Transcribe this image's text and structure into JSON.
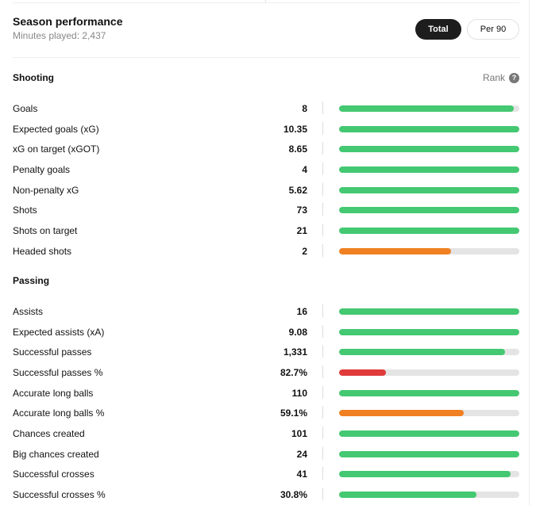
{
  "header": {
    "title": "Season performance",
    "subtitle": "Minutes played: 2,437",
    "buttons": {
      "total": "Total",
      "per90": "Per 90"
    },
    "rank_label": "Rank",
    "rank_help": "?"
  },
  "colors": {
    "good": "#44c872",
    "mid": "#f08022",
    "bad": "#e03a3a",
    "track": "#e4e4e4"
  },
  "sections": [
    {
      "title": "Shooting",
      "rows": [
        {
          "label": "Goals",
          "value": "8",
          "rank_pct": 97,
          "color": "good"
        },
        {
          "label": "Expected goals (xG)",
          "value": "10.35",
          "rank_pct": 100,
          "color": "good"
        },
        {
          "label": "xG on target (xGOT)",
          "value": "8.65",
          "rank_pct": 100,
          "color": "good"
        },
        {
          "label": "Penalty goals",
          "value": "4",
          "rank_pct": 100,
          "color": "good"
        },
        {
          "label": "Non-penalty xG",
          "value": "5.62",
          "rank_pct": 100,
          "color": "good"
        },
        {
          "label": "Shots",
          "value": "73",
          "rank_pct": 100,
          "color": "good"
        },
        {
          "label": "Shots on target",
          "value": "21",
          "rank_pct": 100,
          "color": "good"
        },
        {
          "label": "Headed shots",
          "value": "2",
          "rank_pct": 62,
          "color": "mid"
        }
      ]
    },
    {
      "title": "Passing",
      "rows": [
        {
          "label": "Assists",
          "value": "16",
          "rank_pct": 100,
          "color": "good"
        },
        {
          "label": "Expected assists (xA)",
          "value": "9.08",
          "rank_pct": 100,
          "color": "good"
        },
        {
          "label": "Successful passes",
          "value": "1,331",
          "rank_pct": 92,
          "color": "good"
        },
        {
          "label": "Successful passes %",
          "value": "82.7%",
          "rank_pct": 26,
          "color": "bad"
        },
        {
          "label": "Accurate long balls",
          "value": "110",
          "rank_pct": 100,
          "color": "good"
        },
        {
          "label": "Accurate long balls %",
          "value": "59.1%",
          "rank_pct": 69,
          "color": "mid"
        },
        {
          "label": "Chances created",
          "value": "101",
          "rank_pct": 100,
          "color": "good"
        },
        {
          "label": "Big chances created",
          "value": "24",
          "rank_pct": 100,
          "color": "good"
        },
        {
          "label": "Successful crosses",
          "value": "41",
          "rank_pct": 95,
          "color": "good"
        },
        {
          "label": "Successful crosses %",
          "value": "30.8%",
          "rank_pct": 76,
          "color": "good"
        }
      ]
    }
  ]
}
